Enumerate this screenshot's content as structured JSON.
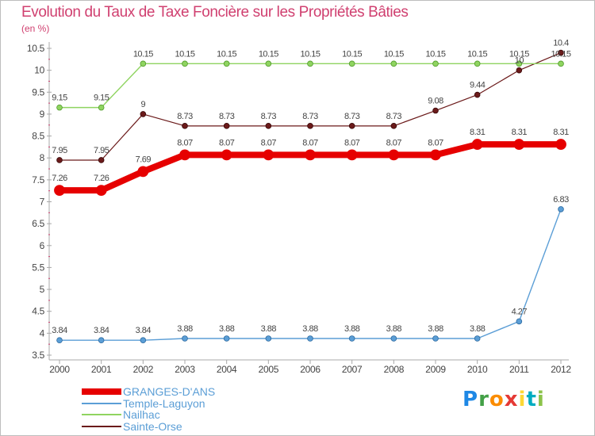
{
  "header": {
    "title": "Evolution du Taux de Taxe Foncière sur les Propriétés Bâties",
    "unit": "(en %)"
  },
  "chart_data": {
    "type": "line",
    "title": "Evolution du Taux de Taxe Foncière sur les Propriétés Bâties",
    "ylabel": "(en %)",
    "xlabel": "",
    "x": [
      "2000",
      "2001",
      "2002",
      "2003",
      "2004",
      "2005",
      "2006",
      "2007",
      "2008",
      "2009",
      "2010",
      "2011",
      "2012"
    ],
    "ylim": [
      3.5,
      10.5
    ],
    "yticks": [
      "3.5",
      "4",
      "4.5",
      "5",
      "5.5",
      "6",
      "6.5",
      "7",
      "7.5",
      "8",
      "8.5",
      "9",
      "9.5",
      "10",
      "10.5"
    ],
    "grid": false,
    "legend_position": "bottom-left",
    "series": [
      {
        "name": "GRANGES-D'ANS",
        "color": "#e60000",
        "values": [
          7.26,
          7.26,
          7.69,
          8.07,
          8.07,
          8.07,
          8.07,
          8.07,
          8.07,
          8.07,
          8.31,
          8.31,
          8.31
        ],
        "labels": [
          "7.26",
          "7.26",
          "7.69",
          "8.07",
          "8.07",
          "8.07",
          "8.07",
          "8.07",
          "8.07",
          "8.07",
          "8.31",
          "8.31",
          "8.31"
        ]
      },
      {
        "name": "Temple-Laguyon",
        "color": "#5b9ed6",
        "values": [
          3.84,
          3.84,
          3.84,
          3.88,
          3.88,
          3.88,
          3.88,
          3.88,
          3.88,
          3.88,
          3.88,
          4.27,
          6.83
        ],
        "labels": [
          "3.84",
          "3.84",
          "3.84",
          "3.88",
          "3.88",
          "3.88",
          "3.88",
          "3.88",
          "3.88",
          "3.88",
          "3.88",
          "4.27",
          "6.83"
        ]
      },
      {
        "name": "Nailhac",
        "color": "#8fd460",
        "values": [
          9.15,
          9.15,
          10.15,
          10.15,
          10.15,
          10.15,
          10.15,
          10.15,
          10.15,
          10.15,
          10.15,
          10.15,
          10.15
        ],
        "labels": [
          "9.15",
          "9.15",
          "10.15",
          "10.15",
          "10.15",
          "10.15",
          "10.15",
          "10.15",
          "10.15",
          "10.15",
          "10.15",
          "10.15",
          "10.15"
        ]
      },
      {
        "name": "Sainte-Orse",
        "color": "#6b1a1a",
        "values": [
          7.95,
          7.95,
          9,
          8.73,
          8.73,
          8.73,
          8.73,
          8.73,
          8.73,
          9.08,
          9.44,
          10,
          10.4
        ],
        "labels": [
          "7.95",
          "7.95",
          "9",
          "8.73",
          "8.73",
          "8.73",
          "8.73",
          "8.73",
          "8.73",
          "9.08",
          "9.44",
          "10",
          "10.4"
        ]
      }
    ]
  },
  "legend": {
    "items": [
      {
        "label": "GRANGES-D'ANS",
        "color": "#e60000"
      },
      {
        "label": "Temple-Laguyon",
        "color": "#5b9ed6"
      },
      {
        "label": "Nailhac",
        "color": "#8fd460"
      },
      {
        "label": "Sainte-Orse",
        "color": "#6b1a1a"
      }
    ]
  },
  "logo": {
    "letters": [
      "P",
      "r",
      "o",
      "x",
      "i",
      "t",
      "i"
    ],
    "colors": [
      "#1e88e5",
      "#43a047",
      "#fb8c00",
      "#e53935",
      "#fdd835",
      "#00acc1",
      "#8bc34a"
    ]
  }
}
